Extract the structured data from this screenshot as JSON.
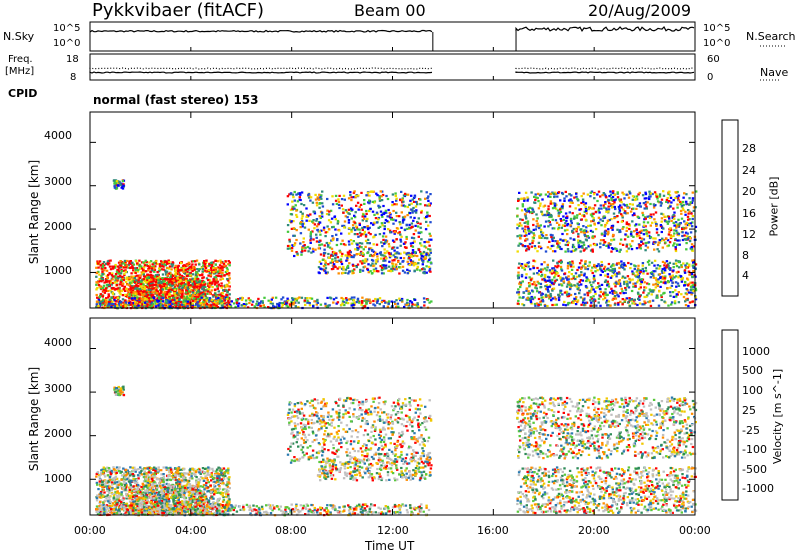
{
  "header": {
    "station": "Pykkvibaer (fitACF)",
    "beam": "Beam 00",
    "date": "20/Aug/2009"
  },
  "panels": {
    "nsky": {
      "label": "N.Sky",
      "ticks": [
        "10^5",
        "10^0"
      ],
      "right_ticks": [
        "10^5",
        "10^0"
      ],
      "right_label": "N.Search"
    },
    "freq": {
      "label_line1": "Freq.",
      "label_line2": "[MHz]",
      "ticks": [
        "18",
        "8"
      ],
      "right_ticks": [
        "60",
        "0"
      ],
      "right_label": "Nave"
    },
    "cpid": {
      "label": "CPID",
      "mode_text": "normal (fast stereo) 153"
    }
  },
  "chart_data": [
    {
      "type": "heatmap",
      "title": "",
      "xlabel": "",
      "ylabel": "Slant Range [km]",
      "x_ticks": [
        "00:00",
        "04:00",
        "08:00",
        "12:00",
        "16:00",
        "20:00",
        "00:00"
      ],
      "y_ticks": [
        "1000",
        "2000",
        "3000",
        "4000"
      ],
      "x_range_hours": [
        0,
        24
      ],
      "ylim_km": [
        180,
        4700
      ],
      "data_gap_hours": [
        13.6,
        16.9
      ],
      "colorbar": {
        "label": "Power [dB]",
        "ticks": [
          "4",
          "8",
          "12",
          "16",
          "20",
          "24",
          "28"
        ],
        "range": [
          0,
          30
        ],
        "colors": [
          "#0000ff",
          "#1e4bd2",
          "#2f8a7a",
          "#42c83a",
          "#f0dc00",
          "#ff8c00",
          "#ff0000"
        ]
      }
    },
    {
      "type": "heatmap",
      "title": "",
      "xlabel": "Time UT",
      "ylabel": "Slant Range [km]",
      "x_ticks": [
        "00:00",
        "04:00",
        "08:00",
        "12:00",
        "16:00",
        "20:00",
        "00:00"
      ],
      "y_ticks": [
        "1000",
        "2000",
        "3000",
        "4000"
      ],
      "x_range_hours": [
        0,
        24
      ],
      "ylim_km": [
        180,
        4700
      ],
      "data_gap_hours": [
        13.6,
        16.9
      ],
      "colorbar": {
        "label": "Velocity [m s^-1]",
        "ticks": [
          "1000",
          "500",
          "100",
          "25",
          "-25",
          "-100",
          "-500",
          "-1000"
        ],
        "colors": [
          "#2040c0",
          "#2a7ab0",
          "#2e8b57",
          "#5ac83c",
          "#c0c0c0",
          "#f0c800",
          "#ff8c00",
          "#ff0000"
        ]
      }
    }
  ]
}
